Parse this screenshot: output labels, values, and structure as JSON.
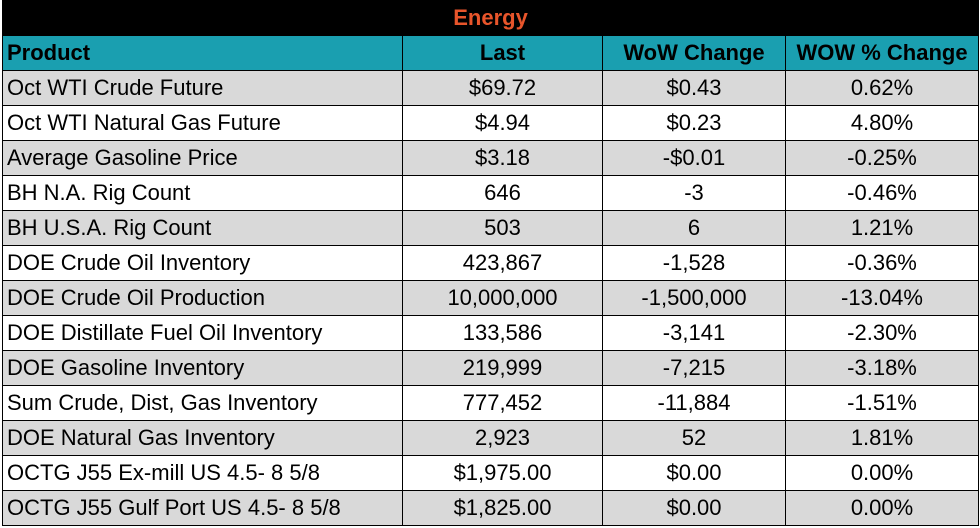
{
  "title": "Energy",
  "columns": [
    "Product",
    "Last",
    "WoW Change",
    "WOW % Change"
  ],
  "rows": [
    [
      "Oct WTI Crude Future",
      "$69.72",
      "$0.43",
      "0.62%"
    ],
    [
      "Oct WTI Natural Gas Future",
      "$4.94",
      "$0.23",
      "4.80%"
    ],
    [
      "Average Gasoline Price",
      "$3.18",
      "-$0.01",
      "-0.25%"
    ],
    [
      "BH N.A. Rig Count",
      "646",
      "-3",
      "-0.46%"
    ],
    [
      "BH U.S.A. Rig Count",
      "503",
      "6",
      "1.21%"
    ],
    [
      "DOE Crude Oil Inventory",
      "423,867",
      "-1,528",
      "-0.36%"
    ],
    [
      "DOE Crude Oil Production",
      "10,000,000",
      "-1,500,000",
      "-13.04%"
    ],
    [
      "DOE Distillate Fuel Oil Inventory",
      "133,586",
      "-3,141",
      "-2.30%"
    ],
    [
      "DOE Gasoline Inventory",
      "219,999",
      "-7,215",
      "-3.18%"
    ],
    [
      "Sum Crude, Dist, Gas Inventory",
      "777,452",
      "-11,884",
      "-1.51%"
    ],
    [
      "DOE Natural Gas Inventory",
      "2,923",
      "52",
      "1.81%"
    ],
    [
      "OCTG J55 Ex-mill US 4.5- 8 5/8",
      "$1,975.00",
      "$0.00",
      "0.00%"
    ],
    [
      "OCTG J55 Gulf Port US 4.5- 8 5/8",
      "$1,825.00",
      "$0.00",
      "0.00%"
    ]
  ],
  "colors": {
    "title_bg": "#000000",
    "title_text": "#e8552b",
    "header_bg": "#1a9fb0",
    "row_alt_bg": "#d9d9d9",
    "row_bg": "#ffffff"
  }
}
